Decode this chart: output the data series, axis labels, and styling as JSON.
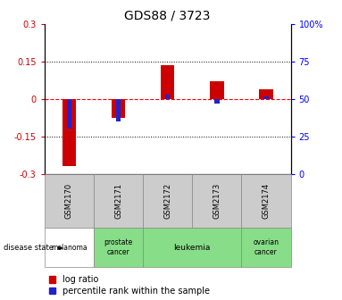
{
  "title": "GDS88 / 3723",
  "samples": [
    "GSM2170",
    "GSM2171",
    "GSM2172",
    "GSM2173",
    "GSM2174"
  ],
  "log_ratio": [
    -0.27,
    -0.075,
    0.135,
    0.07,
    0.04
  ],
  "percentile_raw": [
    30,
    35,
    53,
    47,
    52
  ],
  "disease_state": [
    "melanoma",
    "prostate cancer",
    "leukemia",
    "leukemia",
    "ovarian cancer"
  ],
  "disease_colors": {
    "melanoma": "#ffffff",
    "prostate cancer": "#88dd88",
    "leukemia": "#88dd88",
    "ovarian cancer": "#88dd88"
  },
  "ylim": [
    -0.3,
    0.3
  ],
  "yticks_left": [
    -0.3,
    -0.15,
    0,
    0.15,
    0.3
  ],
  "yticks_right": [
    0,
    25,
    50,
    75,
    100
  ],
  "red_bar_color": "#cc0000",
  "blue_bar_color": "#2222cc",
  "title_fontsize": 10,
  "tick_fontsize": 7,
  "legend_fontsize": 7
}
